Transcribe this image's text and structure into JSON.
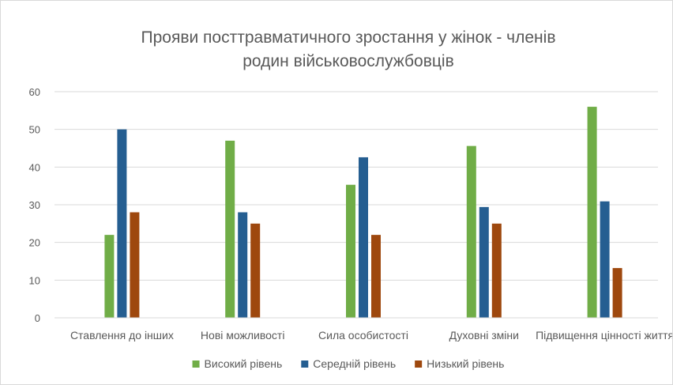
{
  "chart_data": {
    "type": "bar",
    "title_lines": [
      "Прояви посттравматичного зростання у жінок - членів",
      "родин військовослужбовців"
    ],
    "xlabel": "",
    "ylabel": "",
    "categories": [
      "Ставлення до інших",
      "Нові можливості",
      "Сила особистості",
      "Духовні зміни",
      "Підвищення цінності життя"
    ],
    "series": [
      {
        "name": "Високий рівень",
        "color": "#70ad47",
        "values": [
          22,
          47,
          35.3,
          45.6,
          56
        ]
      },
      {
        "name": "Середній рівень",
        "color": "#255e91",
        "values": [
          50,
          28,
          42.6,
          29.4,
          30.9
        ]
      },
      {
        "name": "Низький рівень",
        "color": "#9e480e",
        "values": [
          28,
          25,
          22,
          25,
          13.2
        ]
      }
    ],
    "ylim": [
      0,
      60
    ],
    "yticks": [
      0,
      10,
      20,
      30,
      40,
      50,
      60
    ],
    "grid": true,
    "legend_position": "bottom"
  }
}
